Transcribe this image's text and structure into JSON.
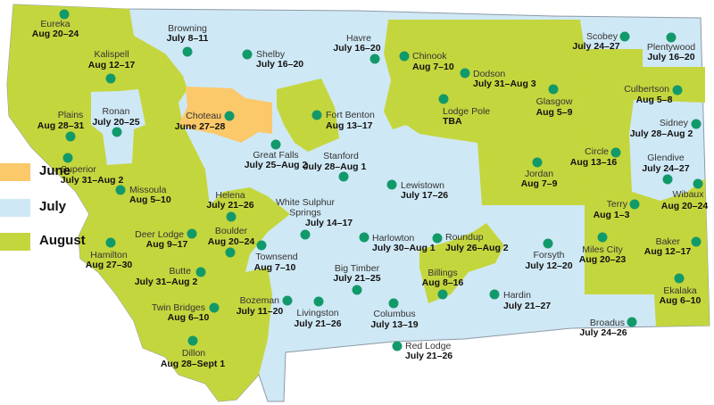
{
  "colors": {
    "june": "#fbc86a",
    "july": "#cfe8f5",
    "august": "#c4d63d",
    "dot": "#12996a",
    "border": "#8c9aa6"
  },
  "legend": [
    {
      "label": "June",
      "month": "june"
    },
    {
      "label": "July",
      "month": "july"
    },
    {
      "label": "August",
      "month": "august"
    }
  ],
  "fairs": [
    {
      "town": "Eureka",
      "dates": "Aug 20–24",
      "month": "august"
    },
    {
      "town": "Kalispell",
      "dates": "Aug 12–17",
      "month": "august"
    },
    {
      "town": "Browning",
      "dates": "July 8–11",
      "month": "july"
    },
    {
      "town": "Shelby",
      "dates": "July 16–20",
      "month": "july"
    },
    {
      "town": "Havre",
      "dates": "July 16–20",
      "month": "july"
    },
    {
      "town": "Chinook",
      "dates": "Aug 7–10",
      "month": "august"
    },
    {
      "town": "Dodson",
      "dates": "July 31–Aug 3",
      "month": "august"
    },
    {
      "town": "Lodge Pole",
      "dates": "TBA",
      "month": "august"
    },
    {
      "town": "Scobey",
      "dates": "July 24–27",
      "month": "july"
    },
    {
      "town": "Plentywood",
      "dates": "July 16–20",
      "month": "july"
    },
    {
      "town": "Culbertson",
      "dates": "Aug 5–8",
      "month": "august"
    },
    {
      "town": "Glasgow",
      "dates": "Aug 5–9",
      "month": "august"
    },
    {
      "town": "Sidney",
      "dates": "July 28–Aug 2",
      "month": "july"
    },
    {
      "town": "Circle",
      "dates": "Aug 13–16",
      "month": "august"
    },
    {
      "town": "Glendive",
      "dates": "July 24–27",
      "month": "july"
    },
    {
      "town": "Jordan",
      "dates": "Aug 7–9",
      "month": "august"
    },
    {
      "town": "Wibaux",
      "dates": "Aug 20–24",
      "month": "august"
    },
    {
      "town": "Terry",
      "dates": "Aug 1–3",
      "month": "august"
    },
    {
      "town": "Miles City",
      "dates": "Aug 20–23",
      "month": "august"
    },
    {
      "town": "Baker",
      "dates": "Aug 12–17",
      "month": "august"
    },
    {
      "town": "Ekalaka",
      "dates": "Aug 6–10",
      "month": "august"
    },
    {
      "town": "Broadus",
      "dates": "July 24–26",
      "month": "july"
    },
    {
      "town": "Forsyth",
      "dates": "July 12–20",
      "month": "july"
    },
    {
      "town": "Hardin",
      "dates": "July 21–27",
      "month": "july"
    },
    {
      "town": "Roundup",
      "dates": "July 26–Aug 2",
      "month": "july"
    },
    {
      "town": "Harlowton",
      "dates": "July 30–Aug 1",
      "month": "july"
    },
    {
      "town": "Billings",
      "dates": "Aug 8–16",
      "month": "august"
    },
    {
      "town": "Columbus",
      "dates": "July 13–19",
      "month": "july"
    },
    {
      "town": "Red Lodge",
      "dates": "July 21–26",
      "month": "july"
    },
    {
      "town": "Big Timber",
      "dates": "July 21–25",
      "month": "july"
    },
    {
      "town": "Livingston",
      "dates": "July 21–26",
      "month": "july"
    },
    {
      "town": "Bozeman",
      "dates": "July 11–20",
      "month": "july"
    },
    {
      "town": "Townsend",
      "dates": "Aug 7–10",
      "month": "august"
    },
    {
      "town": "Boulder",
      "dates": "Aug 20–24",
      "month": "august"
    },
    {
      "town": "Helena",
      "dates": "July 21–26",
      "month": "july"
    },
    {
      "town": "White Sulphur Springs",
      "dates": "July 14–17",
      "month": "july"
    },
    {
      "town": "Great Falls",
      "dates": "July 25–Aug 2",
      "month": "july"
    },
    {
      "town": "Stanford",
      "dates": "July 28–Aug 1",
      "month": "july"
    },
    {
      "town": "Lewistown",
      "dates": "July 17–26",
      "month": "july"
    },
    {
      "town": "Fort Benton",
      "dates": "Aug 13–17",
      "month": "august"
    },
    {
      "town": "Choteau",
      "dates": "June 27–28",
      "month": "june"
    },
    {
      "town": "Plains",
      "dates": "Aug 28–31",
      "month": "august"
    },
    {
      "town": "Ronan",
      "dates": "July 20–25",
      "month": "july"
    },
    {
      "town": "Superior",
      "dates": "July 31–Aug 2",
      "month": "august"
    },
    {
      "town": "Missoula",
      "dates": "Aug 5–10",
      "month": "august"
    },
    {
      "town": "Deer Lodge",
      "dates": "Aug 9–17",
      "month": "august"
    },
    {
      "town": "Hamilton",
      "dates": "Aug 27–30",
      "month": "august"
    },
    {
      "town": "Butte",
      "dates": "July 31–Aug 2",
      "month": "august"
    },
    {
      "town": "Twin Bridges",
      "dates": "Aug 6–10",
      "month": "august"
    },
    {
      "town": "Dillon",
      "dates": "Aug 28–Sept 1",
      "month": "august"
    }
  ]
}
